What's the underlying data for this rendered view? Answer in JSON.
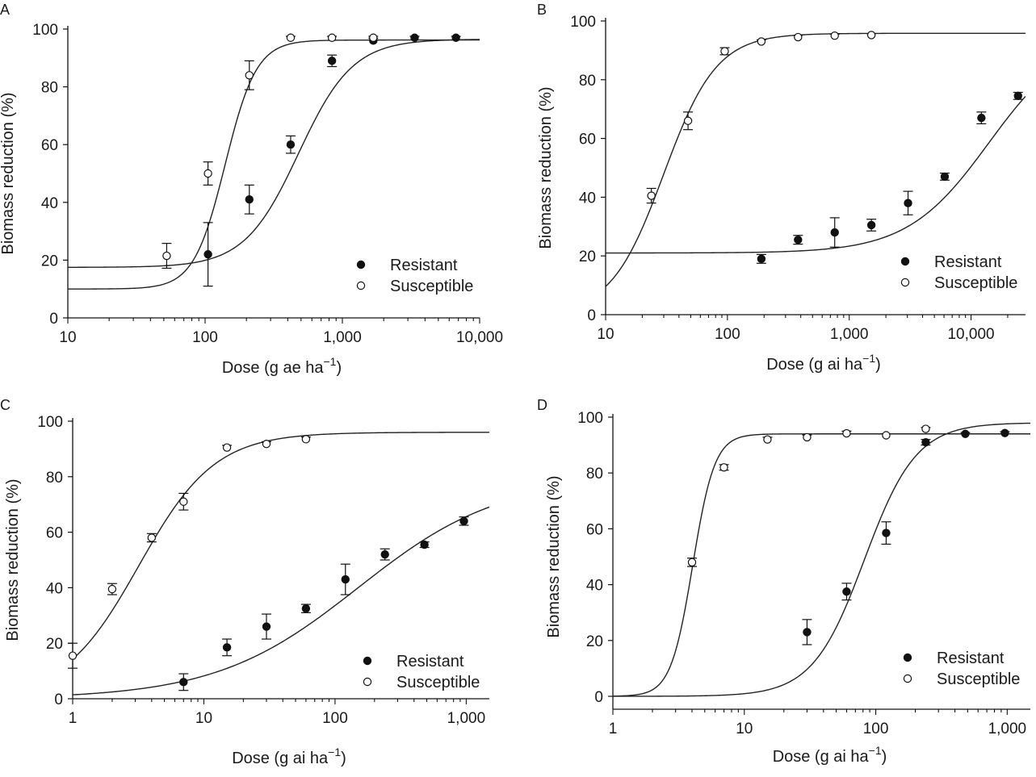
{
  "chart_data": [
    {
      "type": "scatter",
      "panel": "A",
      "xscale": "log",
      "xlim": [
        10,
        10000
      ],
      "ylim": [
        0,
        100
      ],
      "xticks": [
        10,
        100,
        1000,
        10000
      ],
      "xtick_labels": [
        "10",
        "100",
        "1,000",
        "10,000"
      ],
      "yticks": [
        0,
        20,
        40,
        60,
        80,
        100
      ],
      "ylabel": "Biomass reduction (%)",
      "xlabel_main": "Dose (g ae ha",
      "xlabel_sup": "−1",
      "xlabel_close": ")",
      "legend_position": "bottom-right",
      "series": [
        {
          "name": "Resistant",
          "marker": "filled",
          "points": [
            {
              "x": 105,
              "y": 22,
              "err": 11
            },
            {
              "x": 210,
              "y": 41,
              "err": 5
            },
            {
              "x": 420,
              "y": 60,
              "err": 3
            },
            {
              "x": 840,
              "y": 89,
              "err": 2
            },
            {
              "x": 1680,
              "y": 96,
              "err": 0.8
            },
            {
              "x": 3360,
              "y": 97,
              "err": 0.5
            },
            {
              "x": 6720,
              "y": 97,
              "err": 0.5
            }
          ],
          "curve": {
            "lower": 17.5,
            "upper": 96.5,
            "ec50": 480,
            "slope": 2.2
          }
        },
        {
          "name": "Susceptible",
          "marker": "open",
          "points": [
            {
              "x": 52.5,
              "y": 21.5,
              "err": 4.3
            },
            {
              "x": 105,
              "y": 50,
              "err": 4
            },
            {
              "x": 210,
              "y": 84,
              "err": 5
            },
            {
              "x": 420,
              "y": 97,
              "err": 0.5
            },
            {
              "x": 840,
              "y": 97,
              "err": 0.5
            },
            {
              "x": 1680,
              "y": 97,
              "err": 0.5
            }
          ],
          "curve": {
            "lower": 10,
            "upper": 96.2,
            "ec50": 140,
            "slope": 3.8
          }
        }
      ]
    },
    {
      "type": "scatter",
      "panel": "B",
      "xscale": "log",
      "xlim": [
        10,
        28000
      ],
      "ylim": [
        0,
        100
      ],
      "xticks": [
        10,
        100,
        1000,
        10000
      ],
      "xtick_labels": [
        "10",
        "100",
        "1,000",
        "10,000"
      ],
      "yticks": [
        0,
        20,
        40,
        60,
        80,
        100
      ],
      "ylabel": "Biomass reduction (%)",
      "xlabel_main": "Dose (g ai ha",
      "xlabel_sup": "−1",
      "xlabel_close": ")",
      "legend_position": "bottom-right",
      "series": [
        {
          "name": "Resistant",
          "marker": "filled",
          "points": [
            {
              "x": 190,
              "y": 19,
              "err": 1.5
            },
            {
              "x": 380,
              "y": 25.5,
              "err": 1.5
            },
            {
              "x": 760,
              "y": 28,
              "err": 5
            },
            {
              "x": 1520,
              "y": 30.5,
              "err": 2
            },
            {
              "x": 3040,
              "y": 38,
              "err": 4
            },
            {
              "x": 6080,
              "y": 47,
              "err": 1.2
            },
            {
              "x": 12160,
              "y": 67,
              "err": 2
            },
            {
              "x": 24320,
              "y": 74.5,
              "err": 1.2
            }
          ],
          "curve": {
            "lower": 21,
            "upper": 96,
            "ec50": 14000,
            "slope": 1.3
          }
        },
        {
          "name": "Susceptible",
          "marker": "open",
          "points": [
            {
              "x": 23.75,
              "y": 40.5,
              "err": 2.5
            },
            {
              "x": 47.5,
              "y": 66,
              "err": 3
            },
            {
              "x": 95,
              "y": 89.7,
              "err": 1.2
            },
            {
              "x": 190,
              "y": 93,
              "err": 0.6
            },
            {
              "x": 380,
              "y": 94.5,
              "err": 0.6
            },
            {
              "x": 760,
              "y": 95,
              "err": 0.5
            },
            {
              "x": 1520,
              "y": 95.2,
              "err": 0.5
            }
          ],
          "curve": {
            "lower": 0,
            "upper": 95.8,
            "ec50": 30,
            "slope": 2.0
          }
        }
      ]
    },
    {
      "type": "scatter",
      "panel": "C",
      "xscale": "log",
      "xlim": [
        1,
        1500
      ],
      "ylim": [
        0,
        100
      ],
      "xticks": [
        1,
        10,
        100,
        1000
      ],
      "xtick_labels": [
        "1",
        "10",
        "100",
        "1,000"
      ],
      "yticks": [
        0,
        20,
        40,
        60,
        80,
        100
      ],
      "ylabel": "Biomass reduction (%)",
      "xlabel_main": "Dose (g ai ha",
      "xlabel_sup": "−1",
      "xlabel_close": ")",
      "legend_position": "bottom-right",
      "series": [
        {
          "name": "Resistant",
          "marker": "filled",
          "points": [
            {
              "x": 7,
              "y": 6,
              "err": 3
            },
            {
              "x": 15,
              "y": 18.5,
              "err": 3
            },
            {
              "x": 30,
              "y": 26,
              "err": 4.5
            },
            {
              "x": 60,
              "y": 32.5,
              "err": 1.5
            },
            {
              "x": 120,
              "y": 43,
              "err": 5.5
            },
            {
              "x": 240,
              "y": 52,
              "err": 2
            },
            {
              "x": 480,
              "y": 55.5,
              "err": 1
            },
            {
              "x": 960,
              "y": 64,
              "err": 1.5
            }
          ],
          "curve": {
            "lower": 0,
            "upper": 80,
            "ec50": 150,
            "slope": 0.8
          }
        },
        {
          "name": "Susceptible",
          "marker": "open",
          "points": [
            {
              "x": 1,
              "y": 15.5,
              "err": 4.5
            },
            {
              "x": 2,
              "y": 39.5,
              "err": 2
            },
            {
              "x": 4,
              "y": 58,
              "err": 1.5
            },
            {
              "x": 7,
              "y": 71,
              "err": 3
            },
            {
              "x": 15,
              "y": 90.5,
              "err": 0.8
            },
            {
              "x": 30,
              "y": 91.8,
              "err": 0.8
            },
            {
              "x": 60,
              "y": 93.5,
              "err": 0.8
            }
          ],
          "curve": {
            "lower": 0,
            "upper": 96,
            "ec50": 3.2,
            "slope": 1.5
          }
        }
      ]
    },
    {
      "type": "scatter",
      "panel": "D",
      "xscale": "log",
      "xlim": [
        1,
        1500
      ],
      "ylim": [
        0,
        100
      ],
      "xticks": [
        1,
        10,
        100,
        1000
      ],
      "xtick_labels": [
        "1",
        "10",
        "100",
        "1,000"
      ],
      "yticks": [
        0,
        20,
        40,
        60,
        80,
        100
      ],
      "ylabel": "Biomass reduction (%)",
      "xlabel_main": "Dose (g ai ha",
      "xlabel_sup": "−1",
      "xlabel_close": ")",
      "legend_position": "bottom-right",
      "series": [
        {
          "name": "Resistant",
          "marker": "filled",
          "points": [
            {
              "x": 30,
              "y": 23,
              "err": 4.5
            },
            {
              "x": 60,
              "y": 37.5,
              "err": 3
            },
            {
              "x": 120,
              "y": 58.5,
              "err": 4
            },
            {
              "x": 240,
              "y": 91,
              "err": 1
            },
            {
              "x": 480,
              "y": 94,
              "err": 0.5
            },
            {
              "x": 960,
              "y": 94.3,
              "err": 0.5
            }
          ],
          "curve": {
            "lower": 0,
            "upper": 98,
            "ec50": 82,
            "slope": 2.2
          }
        },
        {
          "name": "Susceptible",
          "marker": "open",
          "points": [
            {
              "x": 4,
              "y": 48,
              "err": 1.5
            },
            {
              "x": 7,
              "y": 82,
              "err": 1
            },
            {
              "x": 15,
              "y": 92,
              "err": 0.8
            },
            {
              "x": 30,
              "y": 92.8,
              "err": 0.8
            },
            {
              "x": 60,
              "y": 94.2,
              "err": 0.8
            },
            {
              "x": 120,
              "y": 93.5,
              "err": 0.5
            },
            {
              "x": 240,
              "y": 95.8,
              "err": 0.5
            }
          ],
          "curve": {
            "lower": 0,
            "upper": 94,
            "ec50": 4.05,
            "slope": 5.2
          }
        }
      ]
    }
  ]
}
